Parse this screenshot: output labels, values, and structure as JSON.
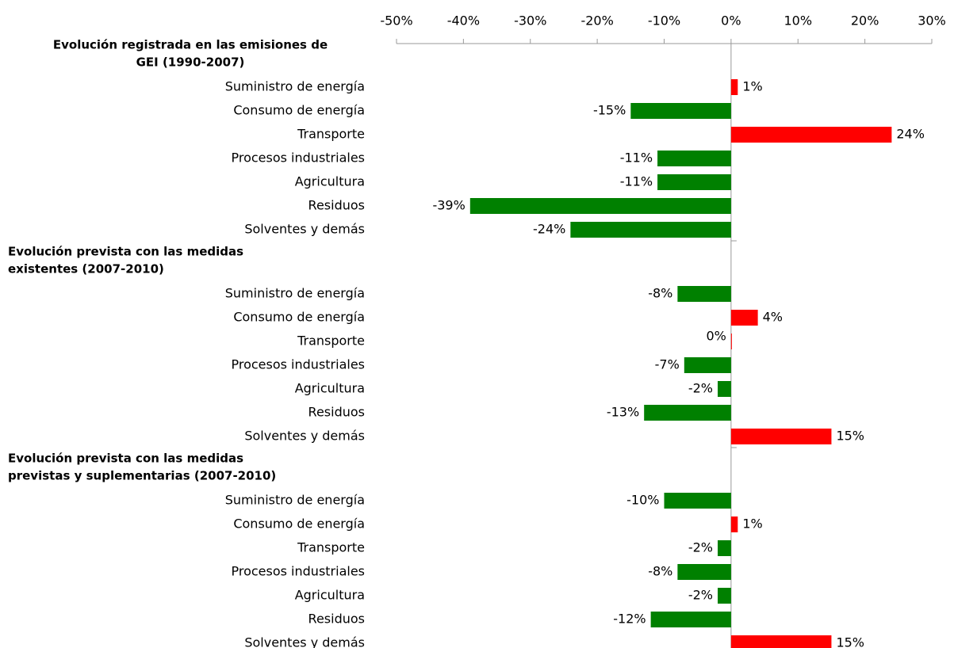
{
  "chart_data": {
    "type": "grouped-hbar",
    "xlim": [
      -50,
      30
    ],
    "xticks": [
      {
        "value": -50,
        "label": "-50%"
      },
      {
        "value": -40,
        "label": "-40%"
      },
      {
        "value": -30,
        "label": "-30%"
      },
      {
        "value": -20,
        "label": "-20%"
      },
      {
        "value": -10,
        "label": "-10%"
      },
      {
        "value": 0,
        "label": "0%"
      },
      {
        "value": 10,
        "label": "10%"
      },
      {
        "value": 20,
        "label": "20%"
      },
      {
        "value": 30,
        "label": "30%"
      }
    ],
    "positive_color": "#ff0000",
    "negative_color": "#008000",
    "groups": [
      {
        "title_lines": [
          "Evolución registrada en las emisiones de",
          "GEI (1990-2007)"
        ],
        "categories": [
          "Suministro de energía",
          "Consumo de energía",
          "Transporte",
          "Procesos industriales",
          "Agricultura",
          "Residuos",
          "Solventes y demás"
        ],
        "values": [
          1,
          -15,
          24,
          -11,
          -11,
          -39,
          -24
        ],
        "value_labels": [
          "1%",
          "-15%",
          "24%",
          "-11%",
          "-11%",
          "-39%",
          "-24%"
        ]
      },
      {
        "title_lines": [
          "Evolución prevista con las medidas",
          "existentes (2007-2010)"
        ],
        "categories": [
          "Suministro de energía",
          "Consumo de energía",
          "Transporte",
          "Procesos industriales",
          "Agricultura",
          "Residuos",
          "Solventes y demás"
        ],
        "values": [
          -8,
          4,
          0,
          -7,
          -2,
          -13,
          15
        ],
        "value_labels": [
          "-8%",
          "4%",
          "0%",
          "-7%",
          "-2%",
          "-13%",
          "15%"
        ]
      },
      {
        "title_lines": [
          "Evolución prevista con las medidas",
          "previstas y suplementarias (2007-2010)"
        ],
        "categories": [
          "Suministro de energía",
          "Consumo de energía",
          "Transporte",
          "Procesos industriales",
          "Agricultura",
          "Residuos",
          "Solventes y demás"
        ],
        "values": [
          -10,
          1,
          -2,
          -8,
          -2,
          -12,
          15
        ],
        "value_labels": [
          "-10%",
          "1%",
          "-2%",
          "-8%",
          "-2%",
          "-12%",
          "15%"
        ]
      }
    ]
  }
}
